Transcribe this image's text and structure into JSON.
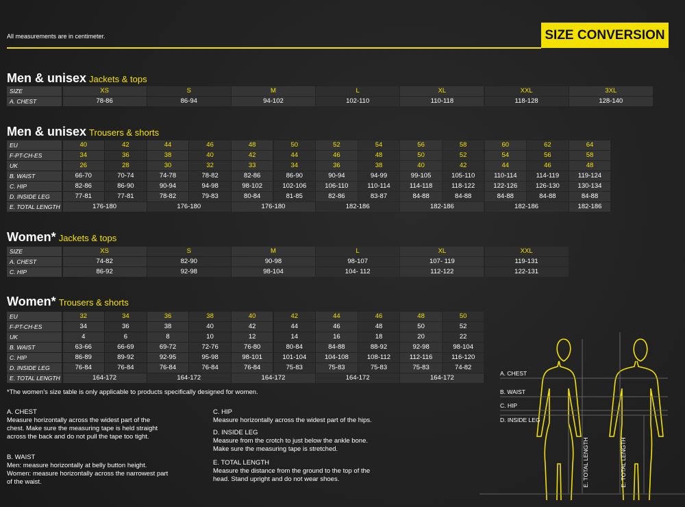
{
  "header": {
    "note": "All measurements are in centimeter.",
    "title": "SIZE CONVERSION"
  },
  "tables": [
    {
      "title": "Men & unisex",
      "subtitle": "Jackets & tops",
      "rows": [
        {
          "label": "SIZE",
          "cells": [
            "XS",
            "S",
            "M",
            "L",
            "XL",
            "XXL",
            "3XL"
          ]
        },
        {
          "label": "A. CHEST",
          "cells": [
            "78-86",
            "86-94",
            "94-102",
            "102-110",
            "110-118",
            "118-128",
            "128-140"
          ]
        }
      ]
    },
    {
      "title": "Men & unisex",
      "subtitle": "Trousers & shorts",
      "rows": [
        {
          "label": "EU",
          "cells": [
            "40",
            "42",
            "44",
            "46",
            "48",
            "50",
            "52",
            "54",
            "56",
            "58",
            "60",
            "62",
            "64"
          ]
        },
        {
          "label": "F-PT-CH-ES",
          "cells": [
            "34",
            "36",
            "38",
            "40",
            "42",
            "44",
            "46",
            "48",
            "50",
            "52",
            "54",
            "56",
            "58"
          ]
        },
        {
          "label": "UK",
          "cells": [
            "26",
            "28",
            "30",
            "32",
            "33",
            "34",
            "36",
            "38",
            "40",
            "42",
            "44",
            "46",
            "48"
          ]
        },
        {
          "label": "B. WAIST",
          "cells": [
            "66-70",
            "70-74",
            "74-78",
            "78-82",
            "82-86",
            "86-90",
            "90-94",
            "94-99",
            "99-105",
            "105-110",
            "110-114",
            "114-119",
            "119-124"
          ]
        },
        {
          "label": "C. HIP",
          "cells": [
            "82-86",
            "86-90",
            "90-94",
            "94-98",
            "98-102",
            "102-106",
            "106-110",
            "110-114",
            "114-118",
            "118-122",
            "122-126",
            "126-130",
            "130-134"
          ]
        },
        {
          "label": "D. INSIDE LEG",
          "cells": [
            "77-81",
            "77-81",
            "78-82",
            "79-83",
            "80-84",
            "81-85",
            "82-86",
            "83-87",
            "84-88",
            "84-88",
            "84-88",
            "84-88",
            "84-88"
          ]
        },
        {
          "label": "E. TOTAL LENGTH",
          "cells": [
            "176-180",
            "176-180",
            "176-180",
            "182-186",
            "182-186",
            "182-186",
            "182-186"
          ]
        }
      ]
    },
    {
      "title": "Women*",
      "subtitle": "Jackets & tops",
      "rows": [
        {
          "label": "SIZE",
          "cells": [
            "XS",
            "S",
            "M",
            "L",
            "XL",
            "XXL"
          ]
        },
        {
          "label": "A. CHEST",
          "cells": [
            "74-82",
            "82-90",
            "90-98",
            "98-107",
            "107- 119",
            "119-131"
          ]
        },
        {
          "label": "C. HIP",
          "cells": [
            "86-92",
            "92-98",
            "98-104",
            "104- 112",
            "112-122",
            "122-131"
          ]
        }
      ]
    },
    {
      "title": "Women*",
      "subtitle": "Trousers & shorts",
      "rows": [
        {
          "label": "EU",
          "cells": [
            "32",
            "34",
            "36",
            "38",
            "40",
            "42",
            "44",
            "46",
            "48",
            "50"
          ]
        },
        {
          "label": "F-PT-CH-ES",
          "cells": [
            "34",
            "36",
            "38",
            "40",
            "42",
            "44",
            "46",
            "48",
            "50",
            "52"
          ]
        },
        {
          "label": "UK",
          "cells": [
            "4",
            "6",
            "8",
            "10",
            "12",
            "14",
            "16",
            "18",
            "20",
            "22"
          ]
        },
        {
          "label": "B. WAIST",
          "cells": [
            "63-66",
            "66-69",
            "69-72",
            "72-76",
            "76-80",
            "80-84",
            "84-88",
            "88-92",
            "92-98",
            "98-104"
          ]
        },
        {
          "label": "C. HIP",
          "cells": [
            "86-89",
            "89-92",
            "92-95",
            "95-98",
            "98-101",
            "101-104",
            "104-108",
            "108-112",
            "112-116",
            "116-120"
          ]
        },
        {
          "label": "D. INSIDE LEG",
          "cells": [
            "76-84",
            "76-84",
            "76-84",
            "76-84",
            "76-84",
            "75-83",
            "75-83",
            "75-83",
            "75-83",
            "74-82"
          ]
        },
        {
          "label": "E. TOTAL LENGTH",
          "cells": [
            "164-172",
            "164-172",
            "164-172",
            "164-172",
            "164-172"
          ]
        }
      ]
    }
  ],
  "footnote": "*The women's size table is only applicable to products specifically designed for women.",
  "definitions": [
    {
      "title": "A. CHEST",
      "lines": [
        "Measure horizontally across the widest part of the",
        "chest. Make sure the measuring tape is held straight",
        "across the back and do not pull the tape too tight."
      ]
    },
    {
      "title": "B. WAIST",
      "lines": [
        "Men: measure horizontally at belly button height.",
        "Women: measure horizontally across the narrowest part",
        "of the waist."
      ]
    },
    {
      "title": "C. HIP",
      "lines": [
        "Measure horizontally across the widest part of the hips."
      ]
    },
    {
      "title": "D. INSIDE LEG",
      "lines": [
        "Measure from the crotch to just below the ankle bone.",
        "Make sure the measuring tape is stretched."
      ]
    },
    {
      "title": "E. TOTAL LENGTH",
      "lines": [
        "Measure the distance from the ground to the top of the",
        "head.  Stand upright and do not wear shoes."
      ]
    }
  ],
  "figure": {
    "labels": [
      "A. CHEST",
      "B. WAIST",
      "C. HIP",
      "D. INSIDE LEG"
    ],
    "length_labels": [
      "E. TOTAL LENGTH",
      "E. TOTAL LENGTH"
    ]
  }
}
